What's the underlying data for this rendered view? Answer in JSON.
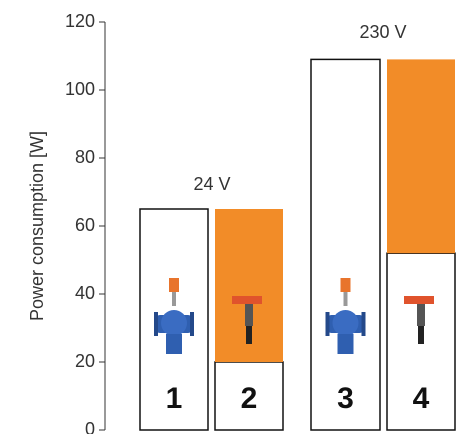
{
  "chart_data": {
    "type": "stacked_bar",
    "y_label": "Power consumption [W]",
    "categories": [
      "1",
      "2",
      "3",
      "4"
    ],
    "series": [
      {
        "color": "#ffffff",
        "values": [
          65,
          20,
          109,
          52
        ]
      },
      {
        "color": "#f28c28",
        "values": [
          null,
          45,
          null,
          57
        ]
      }
    ],
    "ylim": [
      0,
      120
    ],
    "yticks": [
      0,
      20,
      40,
      60,
      80,
      100,
      120
    ],
    "annotations": [
      "24 V",
      "230 V"
    ]
  }
}
